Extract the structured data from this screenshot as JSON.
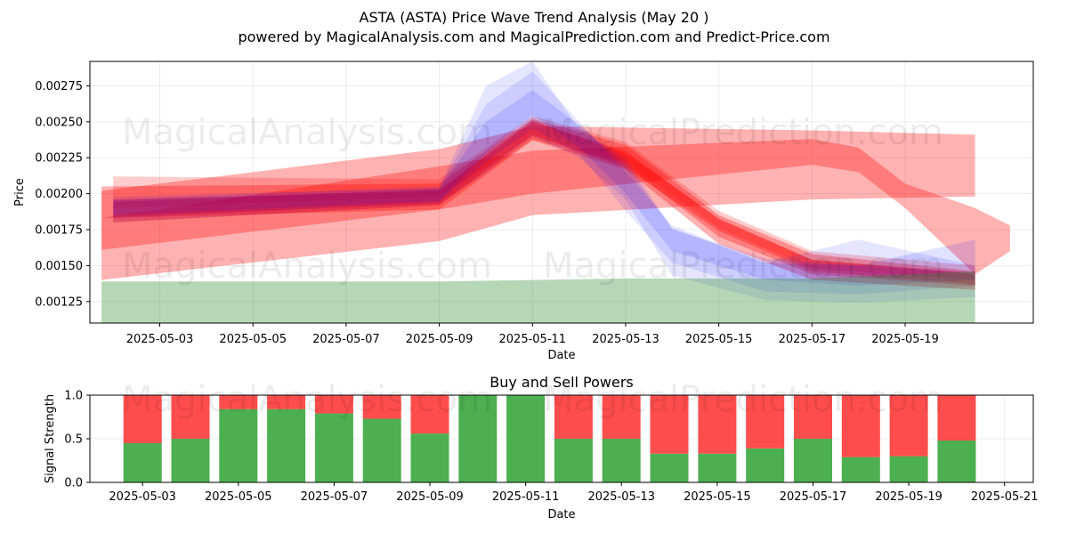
{
  "title": "ASTA (ASTA) Price Wave Trend Analysis (May 20 )",
  "subtitle": "powered by MagicalAnalysis.com and MagicalPrediction.com and Predict-Price.com",
  "watermarks": [
    "MagicalAnalysis.com",
    "MagicalPrediction.com"
  ],
  "colors": {
    "buy": "#4caf50",
    "sell": "#ff4d4d",
    "red_band": "#ff0000",
    "blue_band": "#0000ff",
    "green_band": "#2e8b2e"
  },
  "chart_data": [
    {
      "type": "area",
      "title": "",
      "xlabel": "Date",
      "ylabel": "Price",
      "xlim": [
        "2025-05-01T12:00",
        "2025-05-21T18:00"
      ],
      "ylim": [
        0.0011,
        0.00292
      ],
      "x_ticks": [
        "2025-05-03",
        "2025-05-05",
        "2025-05-07",
        "2025-05-09",
        "2025-05-11",
        "2025-05-13",
        "2025-05-15",
        "2025-05-17",
        "2025-05-19"
      ],
      "y_ticks": [
        "0.00125",
        "0.00150",
        "0.00175",
        "0.00200",
        "0.00225",
        "0.00250",
        "0.00275"
      ],
      "grid": true,
      "bands": [
        {
          "color": "red",
          "opacity": 0.3,
          "points": [
            {
              "date": "2025-05-01T18:00",
              "lower": 0.0014,
              "upper": 0.00202
            },
            {
              "date": "2025-05-09",
              "lower": 0.00167,
              "upper": 0.00231
            },
            {
              "date": "2025-05-11",
              "lower": 0.00185,
              "upper": 0.00247
            },
            {
              "date": "2025-05-17",
              "lower": 0.00196,
              "upper": 0.00244
            },
            {
              "date": "2025-05-20T12:00",
              "lower": 0.00198,
              "upper": 0.00241
            }
          ]
        },
        {
          "color": "red",
          "opacity": 0.3,
          "points": [
            {
              "date": "2025-05-01T18:00",
              "lower": 0.00161,
              "upper": 0.00183
            },
            {
              "date": "2025-05-09",
              "lower": 0.00189,
              "upper": 0.00219
            },
            {
              "date": "2025-05-11",
              "lower": 0.002,
              "upper": 0.0023
            },
            {
              "date": "2025-05-17",
              "lower": 0.0022,
              "upper": 0.00238
            },
            {
              "date": "2025-05-18",
              "lower": 0.00215,
              "upper": 0.00232
            },
            {
              "date": "2025-05-19",
              "lower": 0.0019,
              "upper": 0.00207
            },
            {
              "date": "2025-05-20T12:00",
              "lower": 0.00144,
              "upper": 0.0019
            },
            {
              "date": "2025-05-21T06:00",
              "lower": 0.0016,
              "upper": 0.00178
            }
          ]
        },
        {
          "color": "red",
          "opacity": 0.3,
          "points": [
            {
              "date": "2025-05-01T18:00",
              "lower": 0.00183,
              "upper": 0.00205
            },
            {
              "date": "2025-05-09",
              "lower": 0.00189,
              "upper": 0.00207
            },
            {
              "date": "2025-05-11",
              "lower": 0.00237,
              "upper": 0.00252
            },
            {
              "date": "2025-05-13",
              "lower": 0.00217,
              "upper": 0.00234
            },
            {
              "date": "2025-05-15",
              "lower": 0.00165,
              "upper": 0.00185
            },
            {
              "date": "2025-05-17",
              "lower": 0.0014,
              "upper": 0.00158
            },
            {
              "date": "2025-05-20T12:00",
              "lower": 0.00133,
              "upper": 0.00146
            }
          ]
        },
        {
          "color": "red",
          "opacity": 0.3,
          "points": [
            {
              "date": "2025-05-02",
              "lower": 0.0018,
              "upper": 0.00196
            },
            {
              "date": "2025-05-09",
              "lower": 0.00192,
              "upper": 0.00202
            },
            {
              "date": "2025-05-11",
              "lower": 0.00238,
              "upper": 0.0025
            },
            {
              "date": "2025-05-13",
              "lower": 0.0022,
              "upper": 0.0023
            },
            {
              "date": "2025-05-15",
              "lower": 0.0017,
              "upper": 0.00182
            },
            {
              "date": "2025-05-17",
              "lower": 0.00144,
              "upper": 0.00154
            },
            {
              "date": "2025-05-20T12:00",
              "lower": 0.00136,
              "upper": 0.00144
            }
          ]
        },
        {
          "color": "red",
          "opacity": 0.3,
          "points": [
            {
              "date": "2025-05-02",
              "lower": 0.00184,
              "upper": 0.00194
            },
            {
              "date": "2025-05-09",
              "lower": 0.00193,
              "upper": 0.00203
            },
            {
              "date": "2025-05-11",
              "lower": 0.00241,
              "upper": 0.00251
            },
            {
              "date": "2025-05-13",
              "lower": 0.00218,
              "upper": 0.00228
            },
            {
              "date": "2025-05-15",
              "lower": 0.00174,
              "upper": 0.00183
            },
            {
              "date": "2025-05-17",
              "lower": 0.00146,
              "upper": 0.00154
            },
            {
              "date": "2025-05-20T12:00",
              "lower": 0.00137,
              "upper": 0.00145
            }
          ]
        },
        {
          "color": "red",
          "opacity": 0.2,
          "points": [
            {
              "date": "2025-05-02",
              "lower": 0.0019,
              "upper": 0.00212
            },
            {
              "date": "2025-05-09",
              "lower": 0.00198,
              "upper": 0.0021
            },
            {
              "date": "2025-05-11",
              "lower": 0.0024,
              "upper": 0.00254
            },
            {
              "date": "2025-05-13",
              "lower": 0.00222,
              "upper": 0.00236
            },
            {
              "date": "2025-05-15",
              "lower": 0.00176,
              "upper": 0.00188
            },
            {
              "date": "2025-05-17",
              "lower": 0.00148,
              "upper": 0.0016
            },
            {
              "date": "2025-05-20T12:00",
              "lower": 0.0014,
              "upper": 0.0015
            }
          ]
        },
        {
          "color": "blue",
          "opacity": 0.1,
          "points": [
            {
              "date": "2025-05-02",
              "lower": 0.0018,
              "upper": 0.00196
            },
            {
              "date": "2025-05-09",
              "lower": 0.00192,
              "upper": 0.00205
            },
            {
              "date": "2025-05-10",
              "lower": 0.00215,
              "upper": 0.00275
            },
            {
              "date": "2025-05-11",
              "lower": 0.0024,
              "upper": 0.00292
            },
            {
              "date": "2025-05-12",
              "lower": 0.00225,
              "upper": 0.00245
            },
            {
              "date": "2025-05-13",
              "lower": 0.00196,
              "upper": 0.00225
            },
            {
              "date": "2025-05-14",
              "lower": 0.00143,
              "upper": 0.00175
            },
            {
              "date": "2025-05-16",
              "lower": 0.00126,
              "upper": 0.00155
            },
            {
              "date": "2025-05-18",
              "lower": 0.00124,
              "upper": 0.0015
            },
            {
              "date": "2025-05-20T12:00",
              "lower": 0.00128,
              "upper": 0.00145
            }
          ]
        },
        {
          "color": "blue",
          "opacity": 0.1,
          "points": [
            {
              "date": "2025-05-02",
              "lower": 0.00183,
              "upper": 0.00198
            },
            {
              "date": "2025-05-09",
              "lower": 0.00194,
              "upper": 0.00204
            },
            {
              "date": "2025-05-10",
              "lower": 0.00222,
              "upper": 0.00262
            },
            {
              "date": "2025-05-11",
              "lower": 0.00245,
              "upper": 0.00285
            },
            {
              "date": "2025-05-12",
              "lower": 0.00228,
              "upper": 0.0025
            },
            {
              "date": "2025-05-13",
              "lower": 0.00188,
              "upper": 0.00215
            },
            {
              "date": "2025-05-14",
              "lower": 0.00152,
              "upper": 0.00178
            },
            {
              "date": "2025-05-16",
              "lower": 0.00132,
              "upper": 0.00152
            },
            {
              "date": "2025-05-18",
              "lower": 0.0013,
              "upper": 0.00168
            },
            {
              "date": "2025-05-20T12:00",
              "lower": 0.00136,
              "upper": 0.0015
            }
          ]
        },
        {
          "color": "blue",
          "opacity": 0.12,
          "points": [
            {
              "date": "2025-05-02",
              "lower": 0.00185,
              "upper": 0.00195
            },
            {
              "date": "2025-05-09",
              "lower": 0.00195,
              "upper": 0.00203
            },
            {
              "date": "2025-05-10",
              "lower": 0.00228,
              "upper": 0.0025
            },
            {
              "date": "2025-05-11",
              "lower": 0.00255,
              "upper": 0.00272
            },
            {
              "date": "2025-05-12",
              "lower": 0.00232,
              "upper": 0.00248
            },
            {
              "date": "2025-05-13",
              "lower": 0.002,
              "upper": 0.0022
            },
            {
              "date": "2025-05-14",
              "lower": 0.0016,
              "upper": 0.00176
            },
            {
              "date": "2025-05-16",
              "lower": 0.0014,
              "upper": 0.00152
            },
            {
              "date": "2025-05-18",
              "lower": 0.00136,
              "upper": 0.0015
            },
            {
              "date": "2025-05-20T12:00",
              "lower": 0.0014,
              "upper": 0.00168
            }
          ]
        },
        {
          "color": "green",
          "opacity": 0.35,
          "points": [
            {
              "date": "2025-05-01T18:00",
              "lower": 0.0011,
              "upper": 0.00139
            },
            {
              "date": "2025-05-09",
              "lower": 0.0011,
              "upper": 0.00139
            },
            {
              "date": "2025-05-13",
              "lower": 0.0011,
              "upper": 0.00141
            },
            {
              "date": "2025-05-17",
              "lower": 0.0011,
              "upper": 0.00141
            },
            {
              "date": "2025-05-20T12:00",
              "lower": 0.0011,
              "upper": 0.00146
            }
          ]
        }
      ]
    },
    {
      "type": "bar",
      "title": "Buy and Sell Powers",
      "xlabel": "Date",
      "ylabel": "Signal Strength",
      "ylim": [
        0,
        1
      ],
      "y_ticks": [
        "0.0",
        "0.5",
        "1.0"
      ],
      "x_ticks": [
        "2025-05-03",
        "2025-05-05",
        "2025-05-07",
        "2025-05-09",
        "2025-05-11",
        "2025-05-13",
        "2025-05-15",
        "2025-05-17",
        "2025-05-19",
        "2025-05-21"
      ],
      "grid": true,
      "categories": [
        "2025-05-03",
        "2025-05-04",
        "2025-05-05",
        "2025-05-06",
        "2025-05-07",
        "2025-05-08",
        "2025-05-09",
        "2025-05-10",
        "2025-05-11",
        "2025-05-12",
        "2025-05-13",
        "2025-05-14",
        "2025-05-15",
        "2025-05-16",
        "2025-05-17",
        "2025-05-18",
        "2025-05-19",
        "2025-05-20"
      ],
      "series": [
        {
          "values": [
            0.45,
            0.5,
            0.84,
            0.84,
            0.79,
            0.73,
            0.56,
            1.0,
            1.0,
            0.5,
            0.5,
            0.33,
            0.33,
            0.39,
            0.5,
            0.29,
            0.3,
            0.48
          ]
        },
        {
          "values": [
            0.55,
            0.5,
            0.16,
            0.16,
            0.21,
            0.27,
            0.44,
            0.0,
            0.0,
            0.5,
            0.5,
            0.67,
            0.67,
            0.61,
            0.5,
            0.71,
            0.7,
            0.52
          ]
        }
      ]
    }
  ]
}
